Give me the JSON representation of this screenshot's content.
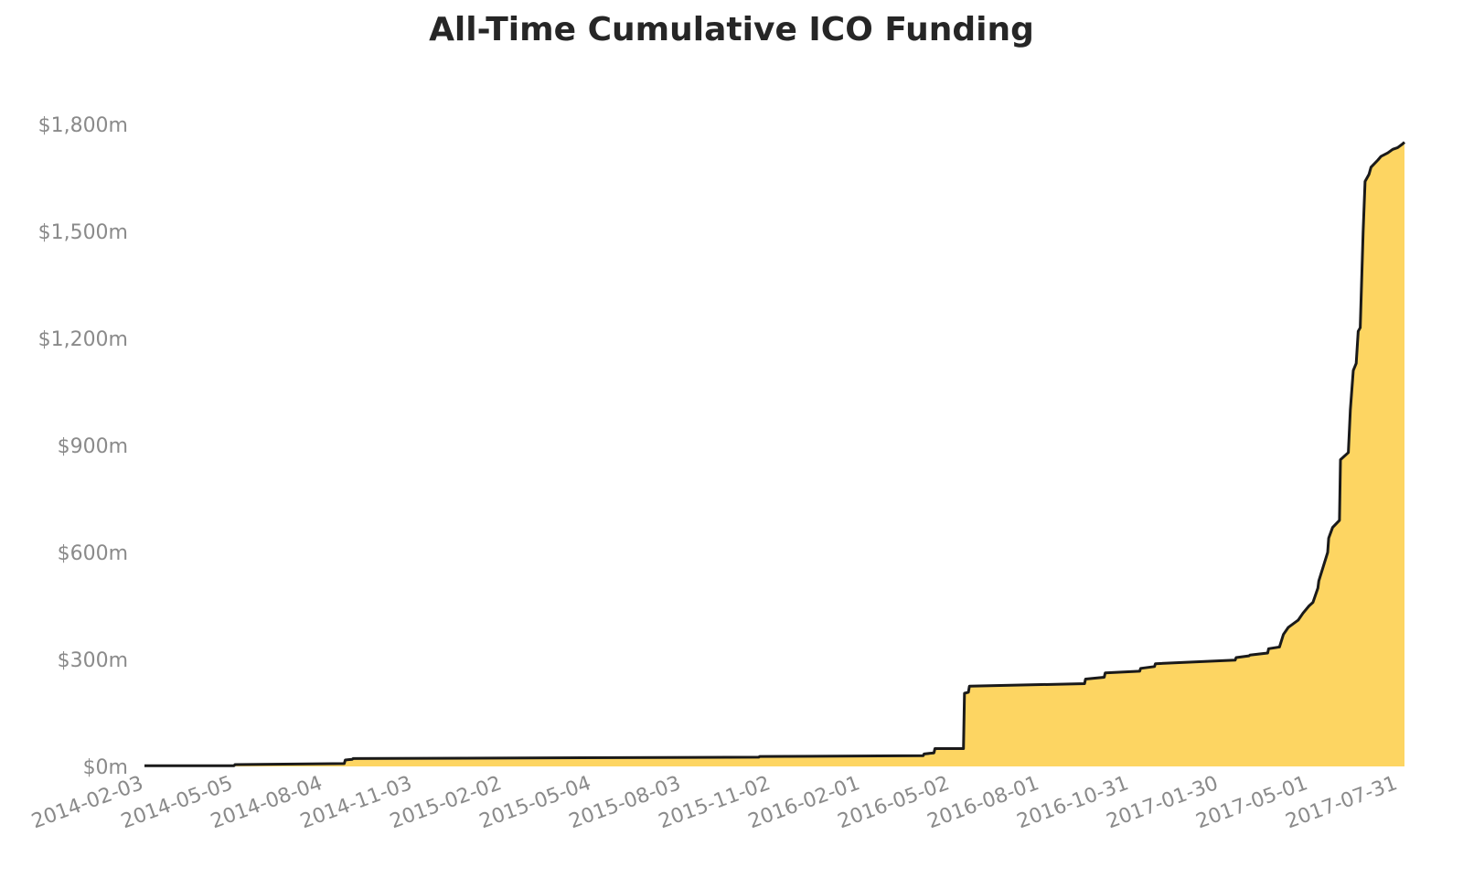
{
  "chart_data": {
    "type": "area",
    "title": "All-Time Cumulative ICO Funding",
    "xlabel": "",
    "ylabel": "",
    "ylim": [
      0,
      1800
    ],
    "y_ticks": [
      0,
      300,
      600,
      900,
      1200,
      1500,
      1800
    ],
    "y_tick_labels": [
      "$0m",
      "$300m",
      "$600m",
      "$900m",
      "$1,200m",
      "$1,500m",
      "$1,800m"
    ],
    "x_ticks": [
      "2014-02-03",
      "2014-05-05",
      "2014-08-04",
      "2014-11-03",
      "2015-02-02",
      "2015-05-04",
      "2015-08-03",
      "2015-11-02",
      "2016-02-01",
      "2016-05-02",
      "2016-08-01",
      "2016-10-31",
      "2017-01-30",
      "2017-05-01",
      "2017-07-31"
    ],
    "grid": false,
    "fill_color": "#fdd562",
    "line_color": "#1a1a1a",
    "series": [
      {
        "x": [
          "2014-02-03",
          "2014-05-05",
          "2014-05-06",
          "2014-08-25",
          "2014-08-26",
          "2014-09-02",
          "2014-09-03",
          "2015-10-20",
          "2015-10-21",
          "2016-04-04",
          "2016-04-05",
          "2016-04-15",
          "2016-04-16",
          "2016-05-01",
          "2016-05-02",
          "2016-05-15",
          "2016-05-16",
          "2016-05-20",
          "2016-05-21",
          "2016-09-15",
          "2016-09-16",
          "2016-10-05",
          "2016-10-06",
          "2016-11-10",
          "2016-11-11",
          "2016-11-25",
          "2016-11-26",
          "2017-02-15",
          "2017-02-16",
          "2017-03-01",
          "2017-03-02",
          "2017-03-20",
          "2017-03-21",
          "2017-04-01",
          "2017-04-05",
          "2017-04-10",
          "2017-04-20",
          "2017-04-25",
          "2017-05-01",
          "2017-05-05",
          "2017-05-10",
          "2017-05-11",
          "2017-05-20",
          "2017-05-21",
          "2017-05-25",
          "2017-06-01",
          "2017-06-02",
          "2017-06-10",
          "2017-06-12",
          "2017-06-15",
          "2017-06-18",
          "2017-06-20",
          "2017-06-22",
          "2017-06-25",
          "2017-06-27",
          "2017-07-01",
          "2017-07-03",
          "2017-07-10",
          "2017-07-13",
          "2017-07-20",
          "2017-07-25",
          "2017-07-30",
          "2017-08-04",
          "2017-08-06"
        ],
        "values": [
          2,
          2,
          5,
          8,
          18,
          20,
          22,
          26,
          28,
          30,
          35,
          38,
          50,
          50,
          50,
          50,
          205,
          208,
          225,
          232,
          245,
          250,
          262,
          267,
          275,
          280,
          288,
          298,
          305,
          310,
          312,
          318,
          330,
          335,
          370,
          390,
          410,
          430,
          450,
          460,
          500,
          520,
          600,
          640,
          670,
          690,
          860,
          880,
          1000,
          1110,
          1130,
          1220,
          1230,
          1500,
          1640,
          1660,
          1680,
          1700,
          1710,
          1720,
          1730,
          1735,
          1745,
          1750
        ]
      }
    ]
  }
}
